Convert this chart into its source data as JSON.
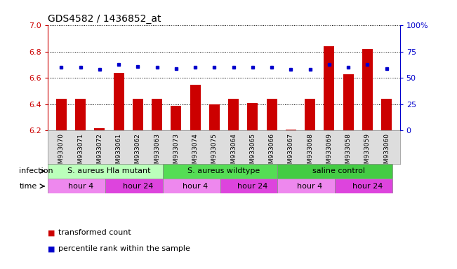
{
  "title": "GDS4582 / 1436852_at",
  "samples": [
    "GSM933070",
    "GSM933071",
    "GSM933072",
    "GSM933061",
    "GSM933062",
    "GSM933063",
    "GSM933073",
    "GSM933074",
    "GSM933075",
    "GSM933064",
    "GSM933065",
    "GSM933066",
    "GSM933067",
    "GSM933068",
    "GSM933069",
    "GSM933058",
    "GSM933059",
    "GSM933060"
  ],
  "red_values": [
    6.44,
    6.44,
    6.22,
    6.64,
    6.44,
    6.44,
    6.39,
    6.55,
    6.4,
    6.44,
    6.41,
    6.44,
    6.21,
    6.44,
    6.84,
    6.63,
    6.82,
    6.44
  ],
  "blue_values": [
    60,
    60,
    58,
    63,
    61,
    60,
    59,
    60,
    60,
    60,
    60,
    60,
    58,
    58,
    63,
    60,
    63,
    59
  ],
  "ylim_left": [
    6.2,
    7.0
  ],
  "ylim_right": [
    0,
    100
  ],
  "yticks_left": [
    6.2,
    6.4,
    6.6,
    6.8,
    7.0
  ],
  "yticks_right": [
    0,
    25,
    50,
    75,
    100
  ],
  "ytick_labels_right": [
    "0",
    "25",
    "50",
    "75",
    "100%"
  ],
  "bar_color": "#cc0000",
  "dot_color": "#0000cc",
  "infection_groups": [
    {
      "label": "S. aureus Hla mutant",
      "start": 0,
      "end": 6,
      "color": "#bbffbb"
    },
    {
      "label": "S. aureus wildtype",
      "start": 6,
      "end": 12,
      "color": "#55dd55"
    },
    {
      "label": "saline control",
      "start": 12,
      "end": 18,
      "color": "#44cc44"
    }
  ],
  "time_groups": [
    {
      "label": "hour 4",
      "start": 0,
      "end": 3,
      "color": "#ee88ee"
    },
    {
      "label": "hour 24",
      "start": 3,
      "end": 6,
      "color": "#dd44dd"
    },
    {
      "label": "hour 4",
      "start": 6,
      "end": 9,
      "color": "#ee88ee"
    },
    {
      "label": "hour 24",
      "start": 9,
      "end": 12,
      "color": "#dd44dd"
    },
    {
      "label": "hour 4",
      "start": 12,
      "end": 15,
      "color": "#ee88ee"
    },
    {
      "label": "hour 24",
      "start": 15,
      "end": 18,
      "color": "#dd44dd"
    }
  ],
  "infection_label": "infection",
  "time_label": "time",
  "legend_red": "transformed count",
  "legend_blue": "percentile rank within the sample",
  "bg_color": "#ffffff",
  "plot_bg": "#ffffff",
  "xticklabel_bg": "#dddddd"
}
